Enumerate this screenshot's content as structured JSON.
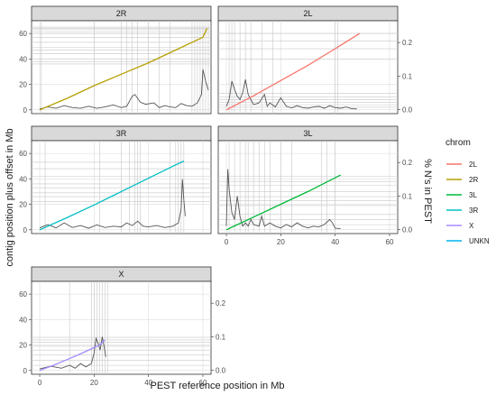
{
  "chart_data": {
    "type": "line",
    "xlabel": "PEST reference position in Mb",
    "ylabel_left": "contig position plus offset in Mb",
    "ylabel_right": "% N's in PEST",
    "legend": {
      "title": "chrom",
      "placement": "right",
      "entries": [
        {
          "name": "2L",
          "color": "#F8766D"
        },
        {
          "name": "2R",
          "color": "#B79F00"
        },
        {
          "name": "3L",
          "color": "#00BA38"
        },
        {
          "name": "3R",
          "color": "#00BFC4"
        },
        {
          "name": "X",
          "color": "#A58AFF"
        },
        {
          "name": "UNKN",
          "color": "#00B4EF"
        }
      ]
    },
    "x_ticks": [
      "0",
      "20",
      "40",
      "60"
    ],
    "left_y_ticks": [
      "0",
      "20",
      "40",
      "60"
    ],
    "right_y_ticks": [
      "0.0",
      "0.1",
      "0.2"
    ],
    "xlim": [
      -3,
      63
    ],
    "ylim_left": [
      -3,
      70
    ],
    "ylim_right": [
      -0.012,
      0.265
    ],
    "panels": [
      {
        "label": "2R",
        "chrom": "2R",
        "mapping": [
          [
            0,
            0
          ],
          [
            10,
            9
          ],
          [
            20,
            19
          ],
          [
            30,
            28
          ],
          [
            40,
            37
          ],
          [
            50,
            47
          ],
          [
            60,
            57
          ],
          [
            61.5,
            64
          ]
        ],
        "pct_n": [
          [
            0,
            0.002
          ],
          [
            3,
            0.008
          ],
          [
            6,
            0.004
          ],
          [
            9,
            0.012
          ],
          [
            12,
            0.006
          ],
          [
            15,
            0.004
          ],
          [
            18,
            0.01
          ],
          [
            21,
            0.004
          ],
          [
            24,
            0.008
          ],
          [
            27,
            0.014
          ],
          [
            30,
            0.006
          ],
          [
            32,
            0.01
          ],
          [
            34,
            0.04
          ],
          [
            35,
            0.045
          ],
          [
            37,
            0.022
          ],
          [
            39,
            0.016
          ],
          [
            42,
            0.02
          ],
          [
            44,
            0.006
          ],
          [
            46,
            0.012
          ],
          [
            48,
            0.008
          ],
          [
            50,
            0.006
          ],
          [
            52,
            0.018
          ],
          [
            54,
            0.012
          ],
          [
            56,
            0.01
          ],
          [
            58,
            0.02
          ],
          [
            59.5,
            0.045
          ],
          [
            60,
            0.12
          ],
          [
            61,
            0.085
          ],
          [
            62,
            0.058
          ]
        ],
        "contig_x": [
          0.5,
          20,
          30,
          32,
          34,
          36,
          40,
          44,
          48,
          56,
          57,
          58,
          59,
          60,
          61,
          62
        ],
        "contig_y": [
          36,
          38,
          40,
          44,
          47,
          49,
          53,
          57,
          60,
          61.5,
          63,
          64,
          65
        ]
      },
      {
        "label": "2L",
        "chrom": "2L",
        "mapping": [
          [
            0,
            0
          ],
          [
            10,
            11
          ],
          [
            20,
            23
          ],
          [
            30,
            35
          ],
          [
            40,
            48
          ],
          [
            49,
            60
          ]
        ],
        "pct_n": [
          [
            0,
            0.01
          ],
          [
            1,
            0.03
          ],
          [
            2,
            0.085
          ],
          [
            3,
            0.06
          ],
          [
            4,
            0.04
          ],
          [
            5,
            0.03
          ],
          [
            6,
            0.05
          ],
          [
            7,
            0.09
          ],
          [
            8,
            0.045
          ],
          [
            10,
            0.015
          ],
          [
            12,
            0.02
          ],
          [
            14,
            0.045
          ],
          [
            15,
            0.01
          ],
          [
            16,
            0.02
          ],
          [
            18,
            0.008
          ],
          [
            20,
            0.035
          ],
          [
            22,
            0.01
          ],
          [
            24,
            0.005
          ],
          [
            26,
            0.012
          ],
          [
            28,
            0.006
          ],
          [
            30,
            0.004
          ],
          [
            32,
            0.008
          ],
          [
            34,
            0.01
          ],
          [
            36,
            0.004
          ],
          [
            38,
            0.012
          ],
          [
            40,
            0.006
          ],
          [
            42,
            0.004
          ],
          [
            44,
            0.008
          ],
          [
            46,
            0.003
          ],
          [
            48,
            0.002
          ]
        ],
        "contig_x": [
          1,
          2,
          3,
          5,
          7,
          9,
          13,
          17,
          40,
          41
        ],
        "contig_y": [
          2,
          4,
          6,
          8,
          10,
          13,
          40,
          48,
          54,
          60
        ]
      },
      {
        "label": "3R",
        "chrom": "3R",
        "mapping": [
          [
            0,
            0
          ],
          [
            10,
            9.5
          ],
          [
            20,
            19.5
          ],
          [
            30,
            30
          ],
          [
            40,
            40.5
          ],
          [
            50,
            51
          ],
          [
            53,
            54
          ]
        ],
        "pct_n": [
          [
            0,
            0.005
          ],
          [
            3,
            0.015
          ],
          [
            6,
            0.005
          ],
          [
            9,
            0.02
          ],
          [
            12,
            0.006
          ],
          [
            15,
            0.012
          ],
          [
            18,
            0.004
          ],
          [
            21,
            0.014
          ],
          [
            24,
            0.006
          ],
          [
            27,
            0.01
          ],
          [
            30,
            0.008
          ],
          [
            32,
            0.02
          ],
          [
            34,
            0.012
          ],
          [
            36,
            0.025
          ],
          [
            38,
            0.01
          ],
          [
            40,
            0.008
          ],
          [
            43,
            0.012
          ],
          [
            46,
            0.006
          ],
          [
            49,
            0.01
          ],
          [
            51,
            0.02
          ],
          [
            52,
            0.06
          ],
          [
            52.5,
            0.15
          ],
          [
            53,
            0.09
          ],
          [
            53.5,
            0.04
          ]
        ],
        "contig_x": [
          2,
          22,
          30,
          33,
          35,
          36,
          37,
          48,
          50,
          51,
          52,
          53
        ],
        "contig_y": [
          22,
          26,
          29,
          33,
          36,
          42,
          48,
          53
        ]
      },
      {
        "label": "3L",
        "chrom": "3L",
        "mapping": [
          [
            0,
            0
          ],
          [
            10,
            10
          ],
          [
            20,
            20
          ],
          [
            30,
            30
          ],
          [
            42,
            43
          ]
        ],
        "pct_n": [
          [
            0,
            0.01
          ],
          [
            0.5,
            0.18
          ],
          [
            1,
            0.12
          ],
          [
            2,
            0.05
          ],
          [
            3,
            0.03
          ],
          [
            4,
            0.1
          ],
          [
            5,
            0.04
          ],
          [
            6,
            0.01
          ],
          [
            7,
            0.02
          ],
          [
            8,
            0.01
          ],
          [
            9,
            0.03
          ],
          [
            10,
            0.015
          ],
          [
            12,
            0.01
          ],
          [
            13,
            0.04
          ],
          [
            14,
            0.01
          ],
          [
            16,
            0.02
          ],
          [
            18,
            0.01
          ],
          [
            20,
            0.005
          ],
          [
            22,
            0.015
          ],
          [
            24,
            0.008
          ],
          [
            26,
            0.02
          ],
          [
            28,
            0.01
          ],
          [
            30,
            0.005
          ],
          [
            32,
            0.01
          ],
          [
            34,
            0.008
          ],
          [
            36,
            0.015
          ],
          [
            38,
            0.03
          ],
          [
            39,
            0.02
          ],
          [
            40,
            0.004
          ],
          [
            42,
            0.003
          ]
        ],
        "contig_x": [
          1,
          3,
          5,
          7,
          8,
          10,
          12,
          14,
          16,
          20,
          24,
          35,
          37,
          40
        ],
        "contig_y": [
          4,
          8,
          12,
          19,
          23,
          26,
          30,
          35,
          38,
          42
        ]
      },
      {
        "label": "X",
        "chrom": "X",
        "mapping": [
          [
            0,
            0
          ],
          [
            5,
            4
          ],
          [
            10,
            8.5
          ],
          [
            15,
            13
          ],
          [
            20,
            18
          ],
          [
            22,
            20
          ],
          [
            24,
            24
          ]
        ],
        "pct_n": [
          [
            0,
            0.004
          ],
          [
            4,
            0.012
          ],
          [
            8,
            0.006
          ],
          [
            11,
            0.015
          ],
          [
            13,
            0.006
          ],
          [
            15,
            0.02
          ],
          [
            17,
            0.01
          ],
          [
            19,
            0.02
          ],
          [
            20,
            0.05
          ],
          [
            20.7,
            0.095
          ],
          [
            21.5,
            0.08
          ],
          [
            22.2,
            0.06
          ],
          [
            23,
            0.1
          ],
          [
            23.7,
            0.07
          ],
          [
            24.3,
            0.04
          ]
        ],
        "contig_x": [
          11,
          19,
          20,
          21,
          22,
          23,
          24,
          25
        ],
        "contig_y": [
          4,
          8,
          12,
          16,
          19,
          22,
          24,
          26
        ]
      }
    ]
  }
}
